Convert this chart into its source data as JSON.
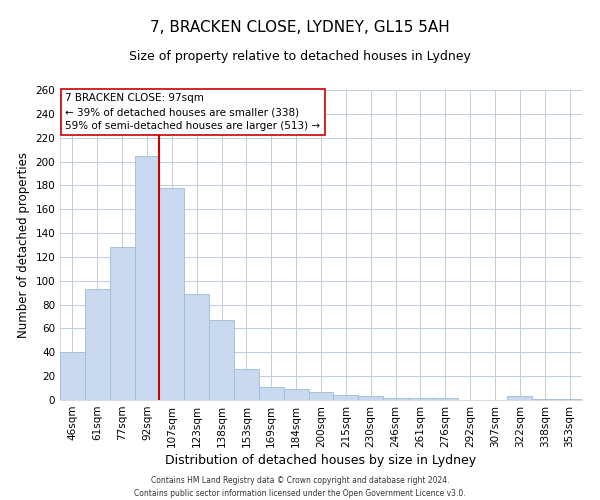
{
  "title": "7, BRACKEN CLOSE, LYDNEY, GL15 5AH",
  "subtitle": "Size of property relative to detached houses in Lydney",
  "xlabel": "Distribution of detached houses by size in Lydney",
  "ylabel": "Number of detached properties",
  "bar_labels": [
    "46sqm",
    "61sqm",
    "77sqm",
    "92sqm",
    "107sqm",
    "123sqm",
    "138sqm",
    "153sqm",
    "169sqm",
    "184sqm",
    "200sqm",
    "215sqm",
    "230sqm",
    "246sqm",
    "261sqm",
    "276sqm",
    "292sqm",
    "307sqm",
    "322sqm",
    "338sqm",
    "353sqm"
  ],
  "bar_values": [
    40,
    93,
    128,
    205,
    178,
    89,
    67,
    26,
    11,
    9,
    7,
    4,
    3,
    2,
    2,
    2,
    0,
    0,
    3,
    1,
    1
  ],
  "bar_color": "#c9d9f0",
  "bar_edgecolor": "#a0bcd8",
  "vline_x": 3.5,
  "vline_color": "#cc0000",
  "ylim": [
    0,
    260
  ],
  "yticks": [
    0,
    20,
    40,
    60,
    80,
    100,
    120,
    140,
    160,
    180,
    200,
    220,
    240,
    260
  ],
  "annotation_title": "7 BRACKEN CLOSE: 97sqm",
  "annotation_line1": "← 39% of detached houses are smaller (338)",
  "annotation_line2": "59% of semi-detached houses are larger (513) →",
  "annotation_box_color": "#ffffff",
  "annotation_box_edgecolor": "#cc0000",
  "footer1": "Contains HM Land Registry data © Crown copyright and database right 2024.",
  "footer2": "Contains public sector information licensed under the Open Government Licence v3.0.",
  "background_color": "#ffffff",
  "plot_background_color": "#ffffff",
  "grid_color": "#c0cce0",
  "title_fontsize": 11,
  "subtitle_fontsize": 9,
  "xlabel_fontsize": 9,
  "ylabel_fontsize": 8.5,
  "tick_fontsize": 7.5,
  "annotation_fontsize": 7.5,
  "footer_fontsize": 5.5
}
